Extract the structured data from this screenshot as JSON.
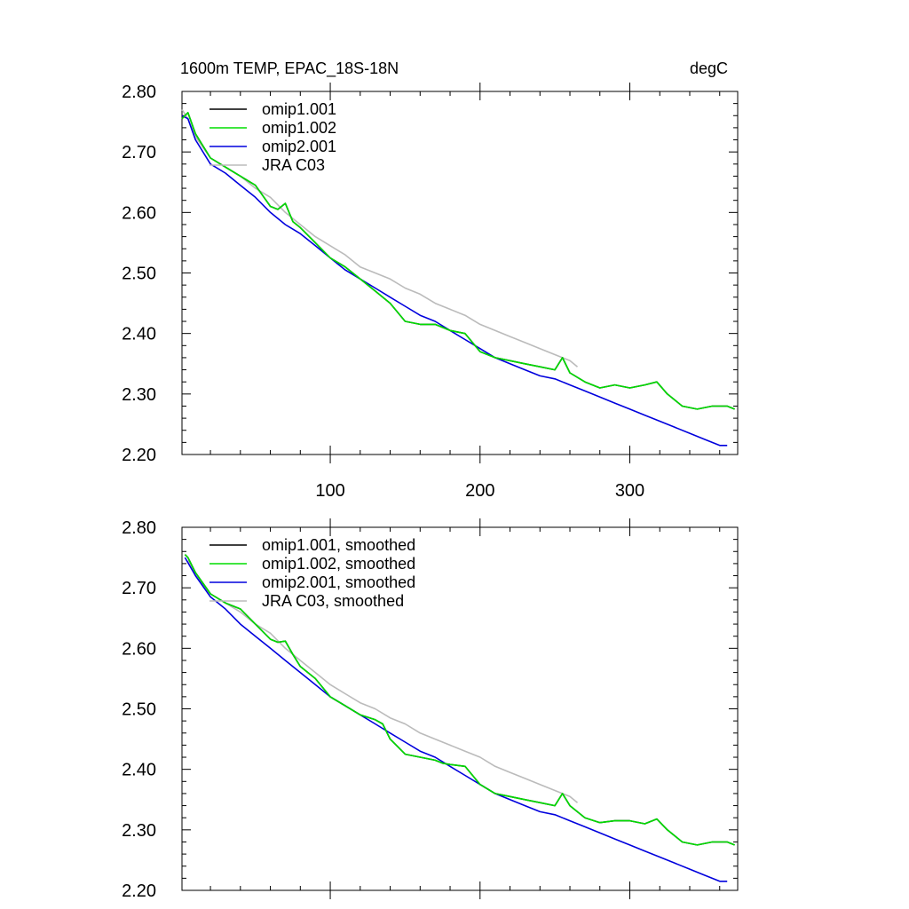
{
  "chart_data": [
    {
      "type": "line",
      "title": "1600m TEMP, EPAC_18S-18N",
      "units": "degC",
      "xlim": [
        1,
        372
      ],
      "ylim": [
        2.2,
        2.8
      ],
      "yticks": [
        "2.80",
        "2.70",
        "2.60",
        "2.50",
        "2.40",
        "2.30",
        "2.20"
      ],
      "xticks": [
        "100",
        "200",
        "300"
      ],
      "legend_position": "top-left",
      "series": [
        {
          "name": "omip1.001",
          "color": "#000000",
          "x": [
            1,
            5,
            10,
            20,
            30,
            40,
            50,
            60,
            65,
            70,
            75,
            80,
            90,
            100,
            110,
            120,
            130,
            140,
            150,
            160,
            170,
            180,
            190,
            200,
            210,
            220,
            230,
            240,
            250,
            255,
            260,
            270,
            280,
            290,
            300,
            310,
            318,
            325,
            335,
            345,
            355,
            365,
            370
          ],
          "y": [
            2.755,
            2.765,
            2.73,
            2.69,
            2.675,
            2.66,
            2.645,
            2.61,
            2.605,
            2.615,
            2.585,
            2.575,
            2.55,
            2.525,
            2.51,
            2.49,
            2.47,
            2.45,
            2.42,
            2.415,
            2.415,
            2.405,
            2.4,
            2.37,
            2.36,
            2.355,
            2.35,
            2.345,
            2.34,
            2.36,
            2.335,
            2.32,
            2.31,
            2.315,
            2.31,
            2.315,
            2.32,
            2.3,
            2.28,
            2.275,
            2.28,
            2.28,
            2.275
          ]
        },
        {
          "name": "omip1.002",
          "color": "#00dd00",
          "x": [
            1,
            5,
            10,
            20,
            30,
            40,
            50,
            60,
            65,
            70,
            75,
            80,
            90,
            100,
            110,
            120,
            130,
            140,
            150,
            160,
            170,
            180,
            190,
            200,
            210,
            220,
            230,
            240,
            250,
            255,
            260,
            270,
            280,
            290,
            300,
            310,
            318,
            325,
            335,
            345,
            355,
            365,
            370
          ],
          "y": [
            2.755,
            2.765,
            2.73,
            2.69,
            2.675,
            2.66,
            2.645,
            2.61,
            2.605,
            2.615,
            2.585,
            2.575,
            2.55,
            2.525,
            2.51,
            2.49,
            2.47,
            2.45,
            2.42,
            2.415,
            2.415,
            2.405,
            2.4,
            2.37,
            2.36,
            2.355,
            2.35,
            2.345,
            2.34,
            2.36,
            2.335,
            2.32,
            2.31,
            2.315,
            2.31,
            2.315,
            2.32,
            2.3,
            2.28,
            2.275,
            2.28,
            2.28,
            2.275
          ]
        },
        {
          "name": "omip2.001",
          "color": "#0000dd",
          "x": [
            1,
            5,
            10,
            20,
            30,
            40,
            50,
            60,
            70,
            80,
            90,
            100,
            110,
            120,
            130,
            140,
            150,
            160,
            170,
            180,
            190,
            200,
            210,
            220,
            230,
            240,
            250,
            260,
            270,
            280,
            290,
            300,
            310,
            320,
            330,
            340,
            350,
            360,
            365
          ],
          "y": [
            2.76,
            2.755,
            2.72,
            2.68,
            2.665,
            2.645,
            2.625,
            2.6,
            2.58,
            2.565,
            2.545,
            2.525,
            2.505,
            2.49,
            2.475,
            2.46,
            2.445,
            2.43,
            2.42,
            2.405,
            2.39,
            2.375,
            2.36,
            2.35,
            2.34,
            2.33,
            2.325,
            2.315,
            2.305,
            2.295,
            2.285,
            2.275,
            2.265,
            2.255,
            2.245,
            2.235,
            2.225,
            2.215,
            2.215
          ]
        },
        {
          "name": "JRA C03",
          "color": "#bbbbbb",
          "x": [
            1,
            5,
            10,
            20,
            30,
            40,
            50,
            60,
            70,
            80,
            90,
            100,
            110,
            120,
            130,
            140,
            150,
            160,
            170,
            180,
            190,
            200,
            210,
            220,
            230,
            240,
            250,
            260,
            265
          ],
          "y": [
            2.77,
            2.755,
            2.725,
            2.69,
            2.675,
            2.66,
            2.64,
            2.625,
            2.6,
            2.58,
            2.56,
            2.545,
            2.53,
            2.51,
            2.5,
            2.49,
            2.475,
            2.465,
            2.45,
            2.44,
            2.43,
            2.415,
            2.405,
            2.395,
            2.385,
            2.375,
            2.365,
            2.355,
            2.345
          ]
        }
      ]
    },
    {
      "type": "line",
      "xlim": [
        1,
        372
      ],
      "ylim": [
        2.2,
        2.8
      ],
      "yticks": [
        "2.80",
        "2.70",
        "2.60",
        "2.50",
        "2.40",
        "2.30",
        "2.20"
      ],
      "legend_position": "top-left",
      "series": [
        {
          "name": "omip1.001, smoothed",
          "color": "#000000",
          "x": [
            3,
            5,
            10,
            20,
            30,
            40,
            50,
            60,
            65,
            70,
            75,
            80,
            90,
            100,
            110,
            120,
            130,
            135,
            140,
            150,
            160,
            170,
            175,
            180,
            190,
            200,
            210,
            220,
            230,
            240,
            250,
            255,
            260,
            270,
            280,
            290,
            300,
            310,
            318,
            325,
            335,
            345,
            355,
            365,
            370
          ],
          "y": [
            2.755,
            2.75,
            2.725,
            2.69,
            2.675,
            2.665,
            2.64,
            2.615,
            2.61,
            2.612,
            2.59,
            2.57,
            2.55,
            2.52,
            2.505,
            2.49,
            2.482,
            2.475,
            2.45,
            2.425,
            2.42,
            2.415,
            2.41,
            2.408,
            2.405,
            2.375,
            2.36,
            2.355,
            2.35,
            2.345,
            2.34,
            2.36,
            2.34,
            2.32,
            2.312,
            2.315,
            2.315,
            2.31,
            2.318,
            2.3,
            2.28,
            2.275,
            2.28,
            2.28,
            2.275
          ]
        },
        {
          "name": "omip1.002, smoothed",
          "color": "#00dd00",
          "x": [
            3,
            5,
            10,
            20,
            30,
            40,
            50,
            60,
            65,
            70,
            75,
            80,
            90,
            100,
            110,
            120,
            130,
            135,
            140,
            150,
            160,
            170,
            175,
            180,
            190,
            200,
            210,
            220,
            230,
            240,
            250,
            255,
            260,
            270,
            280,
            290,
            300,
            310,
            318,
            325,
            335,
            345,
            355,
            365,
            370
          ],
          "y": [
            2.755,
            2.75,
            2.725,
            2.69,
            2.675,
            2.665,
            2.64,
            2.615,
            2.61,
            2.612,
            2.59,
            2.57,
            2.55,
            2.52,
            2.505,
            2.49,
            2.482,
            2.475,
            2.45,
            2.425,
            2.42,
            2.415,
            2.41,
            2.408,
            2.405,
            2.375,
            2.36,
            2.355,
            2.35,
            2.345,
            2.34,
            2.36,
            2.34,
            2.32,
            2.312,
            2.315,
            2.315,
            2.31,
            2.318,
            2.3,
            2.28,
            2.275,
            2.28,
            2.28,
            2.275
          ]
        },
        {
          "name": "omip2.001, smoothed",
          "color": "#0000dd",
          "x": [
            3,
            10,
            20,
            30,
            40,
            50,
            60,
            70,
            80,
            90,
            100,
            110,
            120,
            130,
            140,
            150,
            160,
            170,
            180,
            190,
            200,
            210,
            220,
            230,
            240,
            250,
            260,
            270,
            280,
            290,
            300,
            310,
            320,
            330,
            340,
            350,
            360,
            365
          ],
          "y": [
            2.75,
            2.72,
            2.685,
            2.665,
            2.64,
            2.62,
            2.6,
            2.58,
            2.56,
            2.54,
            2.52,
            2.505,
            2.49,
            2.475,
            2.46,
            2.445,
            2.43,
            2.42,
            2.405,
            2.39,
            2.375,
            2.36,
            2.35,
            2.34,
            2.33,
            2.325,
            2.315,
            2.305,
            2.295,
            2.285,
            2.275,
            2.265,
            2.255,
            2.245,
            2.235,
            2.225,
            2.215,
            2.215
          ]
        },
        {
          "name": "JRA C03, smoothed",
          "color": "#bbbbbb",
          "x": [
            5,
            10,
            20,
            30,
            40,
            50,
            60,
            70,
            80,
            90,
            100,
            110,
            120,
            130,
            140,
            150,
            160,
            170,
            180,
            190,
            200,
            210,
            220,
            230,
            240,
            250,
            260,
            265
          ],
          "y": [
            2.745,
            2.72,
            2.69,
            2.675,
            2.66,
            2.64,
            2.625,
            2.6,
            2.58,
            2.56,
            2.54,
            2.525,
            2.51,
            2.5,
            2.485,
            2.475,
            2.46,
            2.45,
            2.44,
            2.43,
            2.42,
            2.405,
            2.395,
            2.385,
            2.375,
            2.365,
            2.355,
            2.345
          ]
        }
      ]
    }
  ]
}
